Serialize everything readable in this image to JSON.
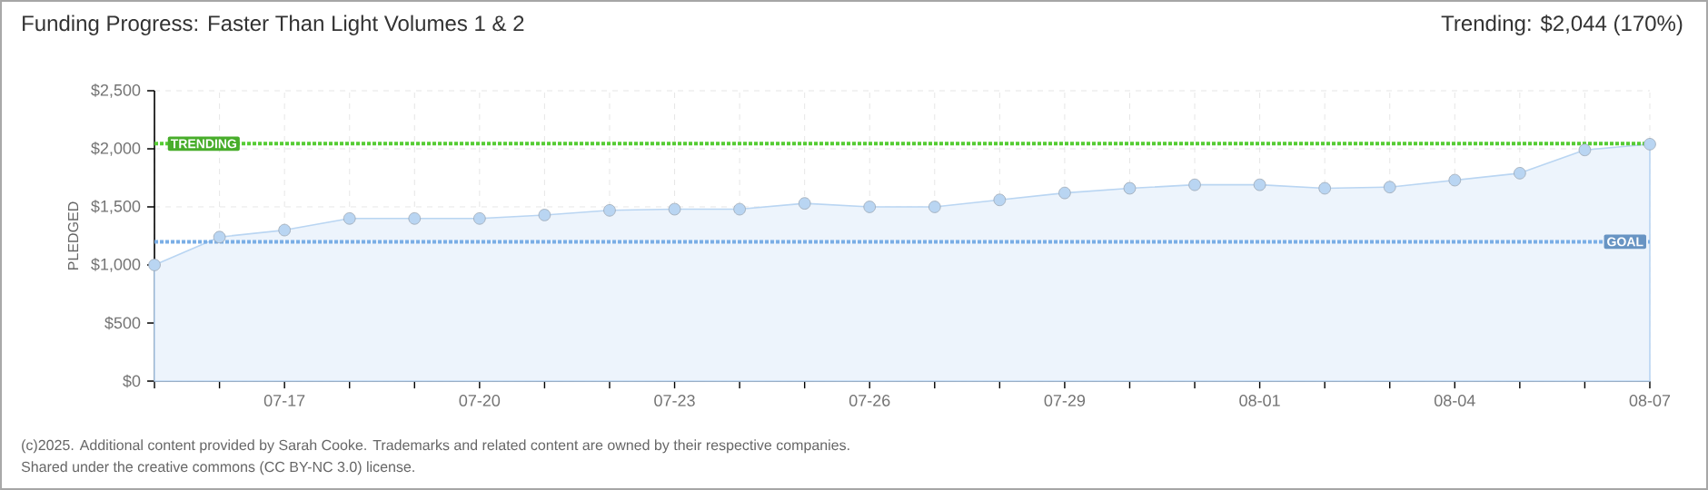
{
  "chart_data": {
    "type": "area",
    "title": "Funding Progress: Faster Than Light Volumes 1 & 2",
    "subtitle": "Trending: $2,044 (170%)",
    "ylabel": "PLEDGED",
    "categories": [
      null,
      null,
      "07-17",
      null,
      null,
      "07-20",
      null,
      null,
      "07-23",
      null,
      null,
      "07-26",
      null,
      null,
      "07-29",
      null,
      null,
      "08-01",
      null,
      null,
      "08-04",
      null,
      null,
      "08-07"
    ],
    "series": [
      {
        "color": "#b9d5f2",
        "values": [
          1000,
          1240,
          1300,
          1400,
          1400,
          1400,
          1430,
          1470,
          1480,
          1480,
          1530,
          1500,
          1500,
          1560,
          1620,
          1660,
          1690,
          1690,
          1660,
          1670,
          1730,
          1790,
          1990,
          2040
        ]
      }
    ],
    "ylim": [
      0,
      2500
    ],
    "yticks": [
      {
        "value": 0,
        "label": "$0"
      },
      {
        "value": 500,
        "label": "$500"
      },
      {
        "value": 1000,
        "label": "$1,000"
      },
      {
        "value": 1500,
        "label": "$1,500"
      },
      {
        "value": 2000,
        "label": "$2,000"
      },
      {
        "value": 2500,
        "label": "$2,500"
      }
    ],
    "grid": true,
    "marker": "circle",
    "ref_lines": [
      {
        "axis": "y",
        "value": 2044,
        "label": "TRENDING",
        "color": "#55cc33",
        "line_style": "dotted"
      },
      {
        "axis": "y",
        "value": 1200,
        "label": "GOAL",
        "color": "#7aaee6",
        "line_style": "dotted"
      }
    ],
    "annotations": [
      "(c)2025. Additional content provided by Sarah Cooke. Trademarks and related content are owned by their respective companies.",
      "Shared under the creative commons (CC BY-NC 3.0) license."
    ]
  }
}
